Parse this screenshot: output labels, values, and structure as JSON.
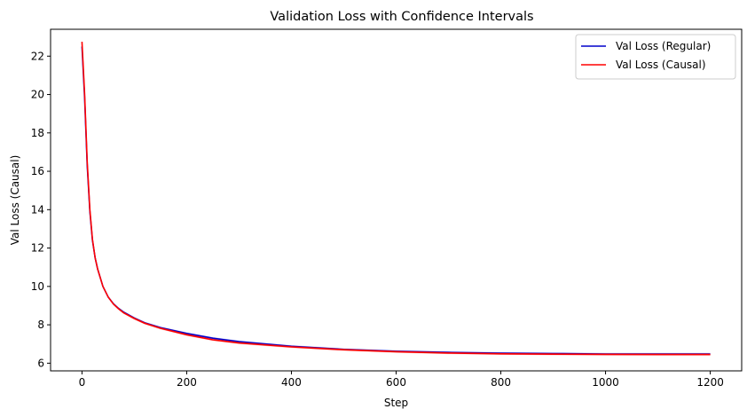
{
  "chart_data": {
    "type": "line",
    "title": "Validation Loss with Confidence Intervals",
    "xlabel": "Step",
    "ylabel": "Val Loss (Causal)",
    "xlim": [
      -60,
      1260
    ],
    "ylim": [
      5.6,
      23.4
    ],
    "xticks": [
      0,
      200,
      400,
      600,
      800,
      1000,
      1200
    ],
    "yticks": [
      6,
      8,
      10,
      12,
      14,
      16,
      18,
      20,
      22
    ],
    "grid": false,
    "legend_position": "top-right",
    "series": [
      {
        "name": "Val Loss (Regular)",
        "color": "#0000cc",
        "x": [
          0,
          5,
          10,
          15,
          20,
          25,
          30,
          40,
          50,
          60,
          70,
          80,
          100,
          120,
          150,
          200,
          250,
          300,
          400,
          500,
          600,
          700,
          800,
          900,
          1000,
          1100,
          1200
        ],
        "y": [
          22.5,
          19.8,
          16.3,
          13.9,
          12.4,
          11.5,
          10.9,
          10.0,
          9.45,
          9.1,
          8.85,
          8.65,
          8.35,
          8.1,
          7.85,
          7.55,
          7.3,
          7.12,
          6.88,
          6.72,
          6.62,
          6.56,
          6.52,
          6.5,
          6.48,
          6.48,
          6.48
        ]
      },
      {
        "name": "Val Loss (Causal)",
        "color": "#ff0000",
        "x": [
          0,
          5,
          10,
          15,
          20,
          25,
          30,
          40,
          50,
          60,
          70,
          80,
          100,
          120,
          150,
          200,
          250,
          300,
          400,
          500,
          600,
          700,
          800,
          900,
          1000,
          1100,
          1200
        ],
        "y": [
          22.75,
          20.0,
          16.5,
          14.0,
          12.45,
          11.5,
          10.9,
          10.0,
          9.45,
          9.08,
          8.83,
          8.62,
          8.33,
          8.08,
          7.82,
          7.48,
          7.22,
          7.05,
          6.85,
          6.7,
          6.6,
          6.53,
          6.49,
          6.47,
          6.46,
          6.45,
          6.45
        ]
      }
    ]
  }
}
